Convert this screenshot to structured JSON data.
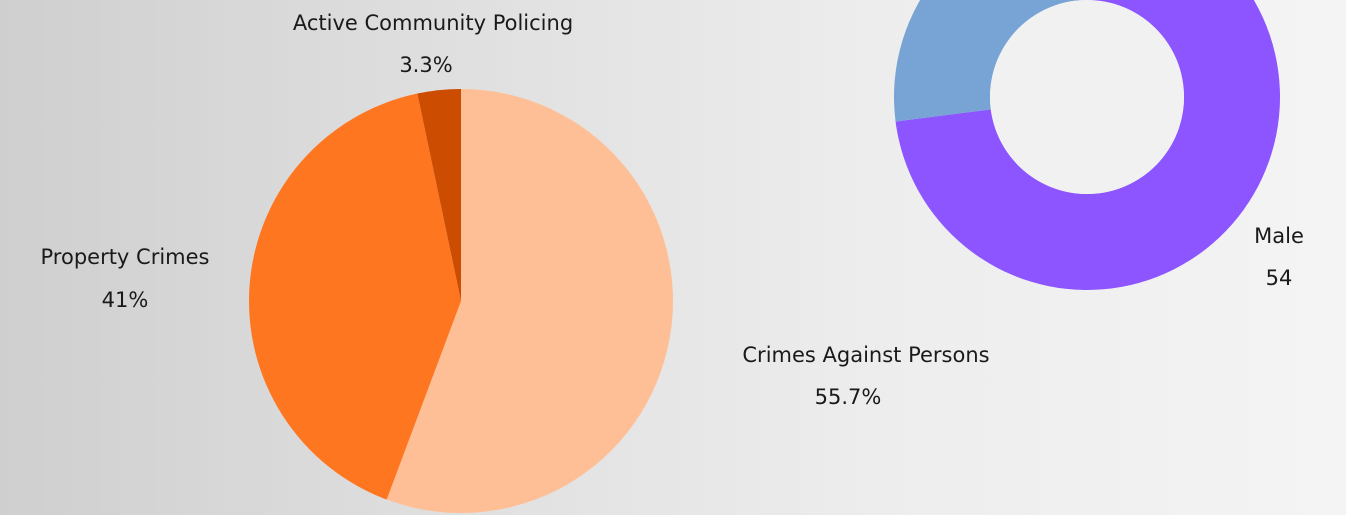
{
  "chart_data": [
    {
      "type": "pie",
      "title": "",
      "slices": [
        {
          "name": "Crimes Against Persons",
          "value": 55.7,
          "display": "55.7%",
          "color": "#ffbf96"
        },
        {
          "name": "Property Crimes",
          "value": 41,
          "display": "41%",
          "color": "#ff7621"
        },
        {
          "name": "Active Community Policing",
          "value": 3.3,
          "display": "3.3%",
          "color": "#cc4d02"
        }
      ]
    },
    {
      "type": "pie",
      "subtype": "donut",
      "title": "",
      "slices": [
        {
          "name": "Male",
          "value": 54,
          "display": "54",
          "color": "#8c55ff"
        },
        {
          "value": 20,
          "color": "#77a3d5"
        }
      ]
    }
  ]
}
